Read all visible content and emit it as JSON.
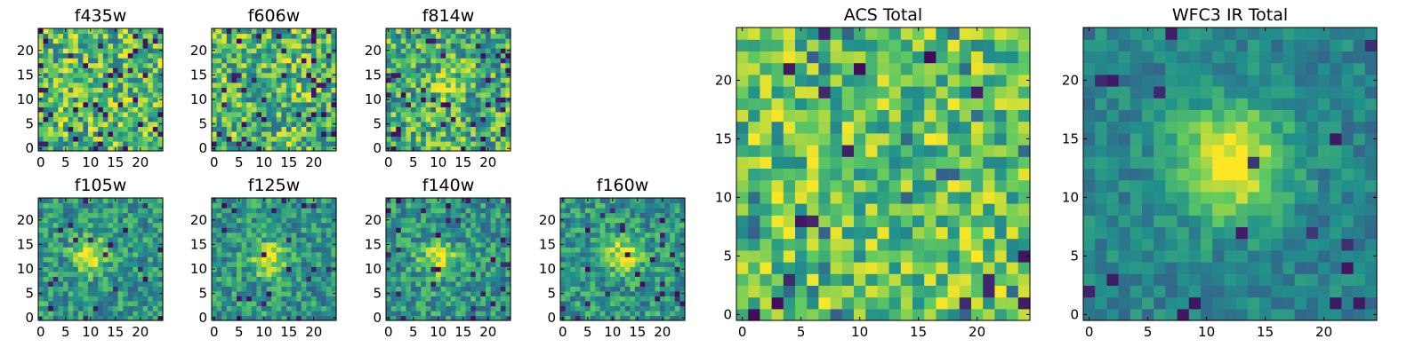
{
  "colormap": "viridis",
  "colormap_stops": [
    "#440154",
    "#3b528b",
    "#21918c",
    "#5ec962",
    "#fde725"
  ],
  "chart_data": [
    {
      "type": "heatmap",
      "title": "f435w",
      "grid": [
        25,
        25
      ],
      "pattern": "noise",
      "seed": 11,
      "xticks": [
        0,
        5,
        10,
        15,
        20
      ],
      "yticks": [
        0,
        5,
        10,
        15,
        20
      ],
      "xlim": [
        -0.5,
        24.5
      ],
      "ylim": [
        -0.5,
        24.5
      ]
    },
    {
      "type": "heatmap",
      "title": "f606w",
      "grid": [
        25,
        25
      ],
      "pattern": "noise",
      "seed": 23,
      "xticks": [
        0,
        5,
        10,
        15,
        20
      ],
      "yticks": [
        0,
        5,
        10,
        15,
        20
      ],
      "xlim": [
        -0.5,
        24.5
      ],
      "ylim": [
        -0.5,
        24.5
      ]
    },
    {
      "type": "heatmap",
      "title": "f814w",
      "grid": [
        25,
        25
      ],
      "pattern": "faint-source",
      "source_center": [
        12,
        13
      ],
      "seed": 37,
      "xticks": [
        0,
        5,
        10,
        15,
        20
      ],
      "yticks": [
        0,
        5,
        10,
        15,
        20
      ],
      "xlim": [
        -0.5,
        24.5
      ],
      "ylim": [
        -0.5,
        24.5
      ]
    },
    {
      "type": "heatmap",
      "title": "f105w",
      "grid": [
        25,
        25
      ],
      "pattern": "source",
      "source_center": [
        10,
        13
      ],
      "seed": 41,
      "xticks": [
        0,
        5,
        10,
        15,
        20
      ],
      "yticks": [
        0,
        5,
        10,
        15,
        20
      ],
      "xlim": [
        -0.5,
        24.5
      ],
      "ylim": [
        -0.5,
        24.5
      ]
    },
    {
      "type": "heatmap",
      "title": "f125w",
      "grid": [
        25,
        25
      ],
      "pattern": "source",
      "source_center": [
        11,
        12
      ],
      "seed": 53,
      "xticks": [
        0,
        5,
        10,
        15,
        20
      ],
      "yticks": [
        0,
        5,
        10,
        15,
        20
      ],
      "xlim": [
        -0.5,
        24.5
      ],
      "ylim": [
        -0.5,
        24.5
      ]
    },
    {
      "type": "heatmap",
      "title": "f140w",
      "grid": [
        25,
        25
      ],
      "pattern": "source",
      "source_center": [
        10,
        12
      ],
      "seed": 67,
      "xticks": [
        0,
        5,
        10,
        15,
        20
      ],
      "yticks": [
        0,
        5,
        10,
        15,
        20
      ],
      "xlim": [
        -0.5,
        24.5
      ],
      "ylim": [
        -0.5,
        24.5
      ]
    },
    {
      "type": "heatmap",
      "title": "f160w",
      "grid": [
        25,
        25
      ],
      "pattern": "source",
      "source_center": [
        12,
        13
      ],
      "seed": 79,
      "xticks": [
        0,
        5,
        10,
        15,
        20
      ],
      "yticks": [
        0,
        5,
        10,
        15,
        20
      ],
      "xlim": [
        -0.5,
        24.5
      ],
      "ylim": [
        -0.5,
        24.5
      ]
    },
    {
      "type": "heatmap",
      "title": "ACS Total",
      "grid": [
        25,
        25
      ],
      "pattern": "noise-bright",
      "seed": 97,
      "xticks": [
        0,
        5,
        10,
        15,
        20
      ],
      "yticks": [
        0,
        5,
        10,
        15,
        20
      ],
      "xlim": [
        -0.5,
        24.5
      ],
      "ylim": [
        -0.5,
        24.5
      ]
    },
    {
      "type": "heatmap",
      "title": "WFC3 IR Total",
      "grid": [
        25,
        25
      ],
      "pattern": "strong-source",
      "source_center": [
        12,
        13
      ],
      "seed": 113,
      "xticks": [
        0,
        5,
        10,
        15,
        20
      ],
      "yticks": [
        0,
        5,
        10,
        15,
        20
      ],
      "xlim": [
        -0.5,
        24.5
      ],
      "ylim": [
        -0.5,
        24.5
      ]
    }
  ]
}
